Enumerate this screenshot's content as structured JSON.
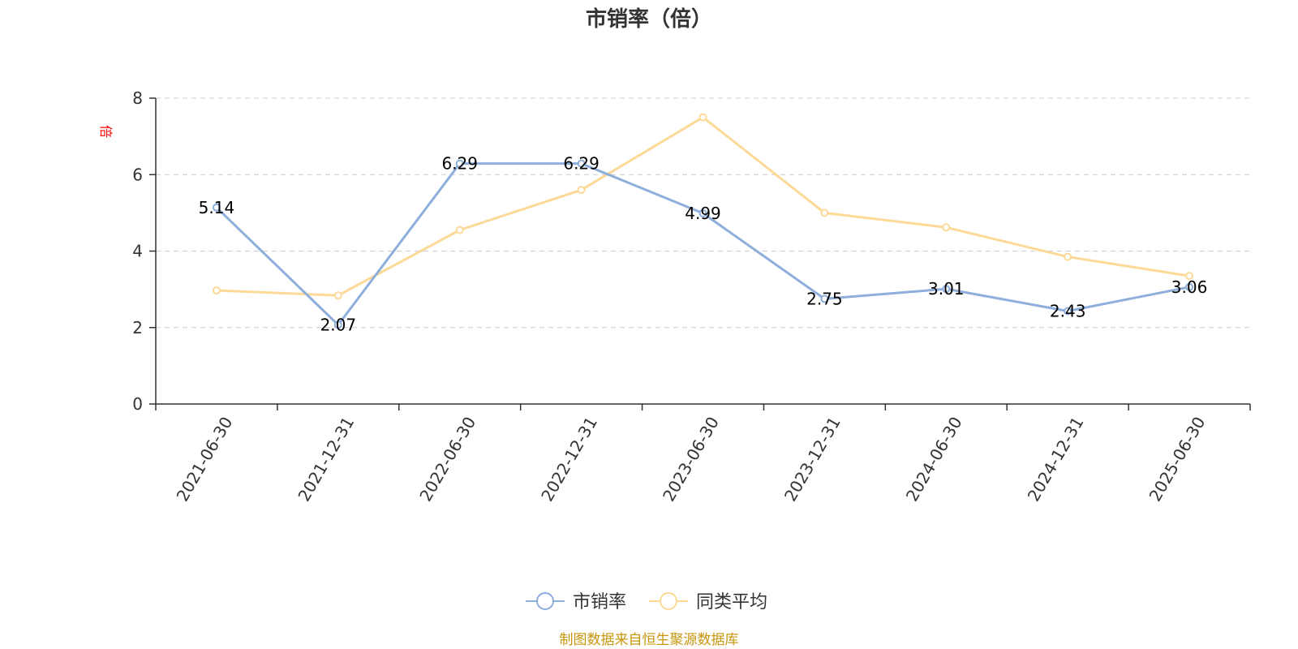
{
  "chart_data": {
    "type": "line",
    "title": "市销率（倍）",
    "ylabel": "倍",
    "xlabel": "",
    "ylim": [
      0,
      8
    ],
    "yticks": [
      0,
      2,
      4,
      6,
      8
    ],
    "grid": true,
    "legend_position": "bottom-center",
    "categories": [
      "2021-06-30",
      "2021-12-31",
      "2022-06-30",
      "2022-12-31",
      "2023-06-30",
      "2023-12-31",
      "2024-06-30",
      "2024-12-31",
      "2025-06-30"
    ],
    "series": [
      {
        "name": "市销率",
        "color": "#8eaedb",
        "values": [
          5.14,
          2.07,
          6.29,
          6.29,
          4.99,
          2.75,
          3.01,
          2.43,
          3.06
        ],
        "labels": [
          "5.14",
          "2.07",
          "6.29",
          "6.29",
          "4.99",
          "2.75",
          "3.01",
          "2.43",
          "3.06"
        ]
      },
      {
        "name": "同类平均",
        "color": "#fdd998",
        "values": [
          2.97,
          2.84,
          4.55,
          5.6,
          7.5,
          5.0,
          4.62,
          3.85,
          3.35
        ]
      }
    ]
  },
  "source_note": "制图数据来自恒生聚源数据库",
  "colors": {
    "ylabel": "#ff0000",
    "source": "#c8960c"
  }
}
